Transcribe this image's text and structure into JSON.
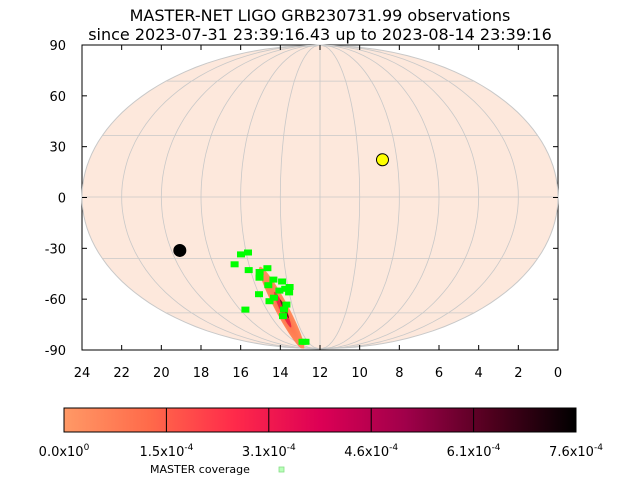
{
  "chart_data": {
    "type": "scatter",
    "projection": "mollweide sky map",
    "title": "MASTER-NET LIGO GRB230731.99 observations",
    "subtitle": "since 2023-07-31 23:39:16.43 up to 2023-08-14 23:39:16",
    "xlabel": "",
    "ylabel": "",
    "xlim": [
      24,
      0
    ],
    "ylim": [
      -90,
      90
    ],
    "x_ticks": [
      "24",
      "22",
      "20",
      "18",
      "16",
      "14",
      "12",
      "10",
      "8",
      "6",
      "4",
      "2",
      "0"
    ],
    "y_ticks": [
      "90",
      "60",
      "30",
      "0",
      "-30",
      "-60",
      "-90"
    ],
    "grid": true,
    "colors": {
      "sky_background": "#fde8dc",
      "grid_lines": "#c8c8c8",
      "probability_low": "#ff8c55",
      "probability_high": "#000000",
      "coverage": "#00ff00",
      "sun": "#ffff00",
      "moon": "#000000"
    },
    "markers": [
      {
        "name": "sun",
        "ra_hours": 8.75,
        "dec_deg": 18
      },
      {
        "name": "moon",
        "ra_hours": 19.55,
        "dec_deg": -26
      }
    ],
    "probability_region": {
      "ra_hours_range": [
        12,
        17.7
      ],
      "dec_deg_range": [
        -85,
        -27
      ],
      "peak": {
        "ra_hours": 14.8,
        "dec_deg": -58
      }
    },
    "coverage_fields": [
      [
        16.3,
        -28
      ],
      [
        15.9,
        -27
      ],
      [
        16.8,
        -33
      ],
      [
        16.1,
        -36
      ],
      [
        15.5,
        -37
      ],
      [
        15.0,
        -35
      ],
      [
        15.6,
        -40
      ],
      [
        14.8,
        -41
      ],
      [
        15.2,
        -44
      ],
      [
        14.3,
        -42
      ],
      [
        13.9,
        -45
      ],
      [
        14.0,
        -48
      ],
      [
        14.6,
        -47
      ],
      [
        15.1,
        -51
      ],
      [
        15.5,
        -53
      ],
      [
        14.4,
        -55
      ],
      [
        14.7,
        -58
      ],
      [
        17.6,
        -58
      ],
      [
        15.0,
        -62
      ],
      [
        14.9,
        -81
      ],
      [
        14.4,
        -81
      ],
      [
        16.0,
        -49
      ],
      [
        14.2,
        -46
      ]
    ],
    "colorbar": {
      "min": 0,
      "max": 0.00076,
      "tick_labels": [
        {
          "mantissa": "0.0x10",
          "exponent": "0"
        },
        {
          "mantissa": "1.5x10",
          "exponent": "-4"
        },
        {
          "mantissa": "3.1x10",
          "exponent": "-4"
        },
        {
          "mantissa": "4.6x10",
          "exponent": "-4"
        },
        {
          "mantissa": "6.1x10",
          "exponent": "-4"
        },
        {
          "mantissa": "7.6x10",
          "exponent": "-4"
        }
      ],
      "stops": [
        "#ff9966",
        "#ff6a4a",
        "#ff2a4a",
        "#dd0055",
        "#a0004a",
        "#50001e",
        "#000000"
      ]
    },
    "legend": [
      {
        "label": "MASTER coverage",
        "color": "#00ff00"
      }
    ]
  }
}
